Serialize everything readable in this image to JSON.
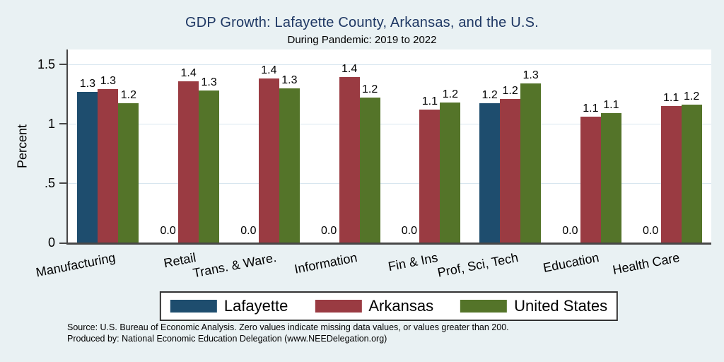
{
  "colors": {
    "background": "#e9f1f3",
    "plot_bg": "#ffffff",
    "axis": "#474747",
    "gridline": "#d8e6ef",
    "title": "#1f3864",
    "lafayette_blue": "#1e4d6e",
    "arkansas_maroon": "#9a3b42",
    "us_green": "#547429"
  },
  "chart_data": {
    "type": "bar",
    "title": "GDP Growth: Lafayette County, Arkansas, and the U.S.",
    "subtitle": "During Pandemic: 2019 to 2022",
    "ylabel": "Percent",
    "xlabel": "",
    "ylim": [
      0,
      1.625
    ],
    "yticks": [
      0,
      0.5,
      1,
      1.5
    ],
    "ytick_labels": [
      "0",
      ".5",
      "1",
      "1.5"
    ],
    "grid": true,
    "legend_position": "bottom",
    "categories": [
      "Manufacturing",
      "Retail",
      "Trans. & Ware.",
      "Information",
      "Fin & Ins",
      "Prof, Sci, Tech",
      "Education",
      "Health Care"
    ],
    "series": [
      {
        "name": "Lafayette",
        "color": "#1e4d6e",
        "values": [
          1.27,
          0,
          0,
          0,
          0,
          1.17,
          0,
          0
        ],
        "labels": [
          "1.3",
          "0.0",
          "0.0",
          "0.0",
          "0.0",
          "1.2",
          "0.0",
          "0.0"
        ]
      },
      {
        "name": "Arkansas",
        "color": "#9a3b42",
        "values": [
          1.29,
          1.36,
          1.38,
          1.39,
          1.12,
          1.21,
          1.06,
          1.15
        ],
        "labels": [
          "1.3",
          "1.4",
          "1.4",
          "1.4",
          "1.1",
          "1.2",
          "1.1",
          "1.1"
        ]
      },
      {
        "name": "United States",
        "color": "#547429",
        "values": [
          1.17,
          1.28,
          1.3,
          1.22,
          1.18,
          1.34,
          1.09,
          1.16
        ],
        "labels": [
          "1.2",
          "1.3",
          "1.3",
          "1.2",
          "1.2",
          "1.3",
          "1.1",
          "1.2"
        ]
      }
    ]
  },
  "notes": {
    "source": "Source: U.S. Bureau of Economic Analysis. Zero values indicate missing data values, or values greater than 200.",
    "produced_by": "Produced by: National Economic Education Delegation (www.NEEDelegation.org)"
  }
}
